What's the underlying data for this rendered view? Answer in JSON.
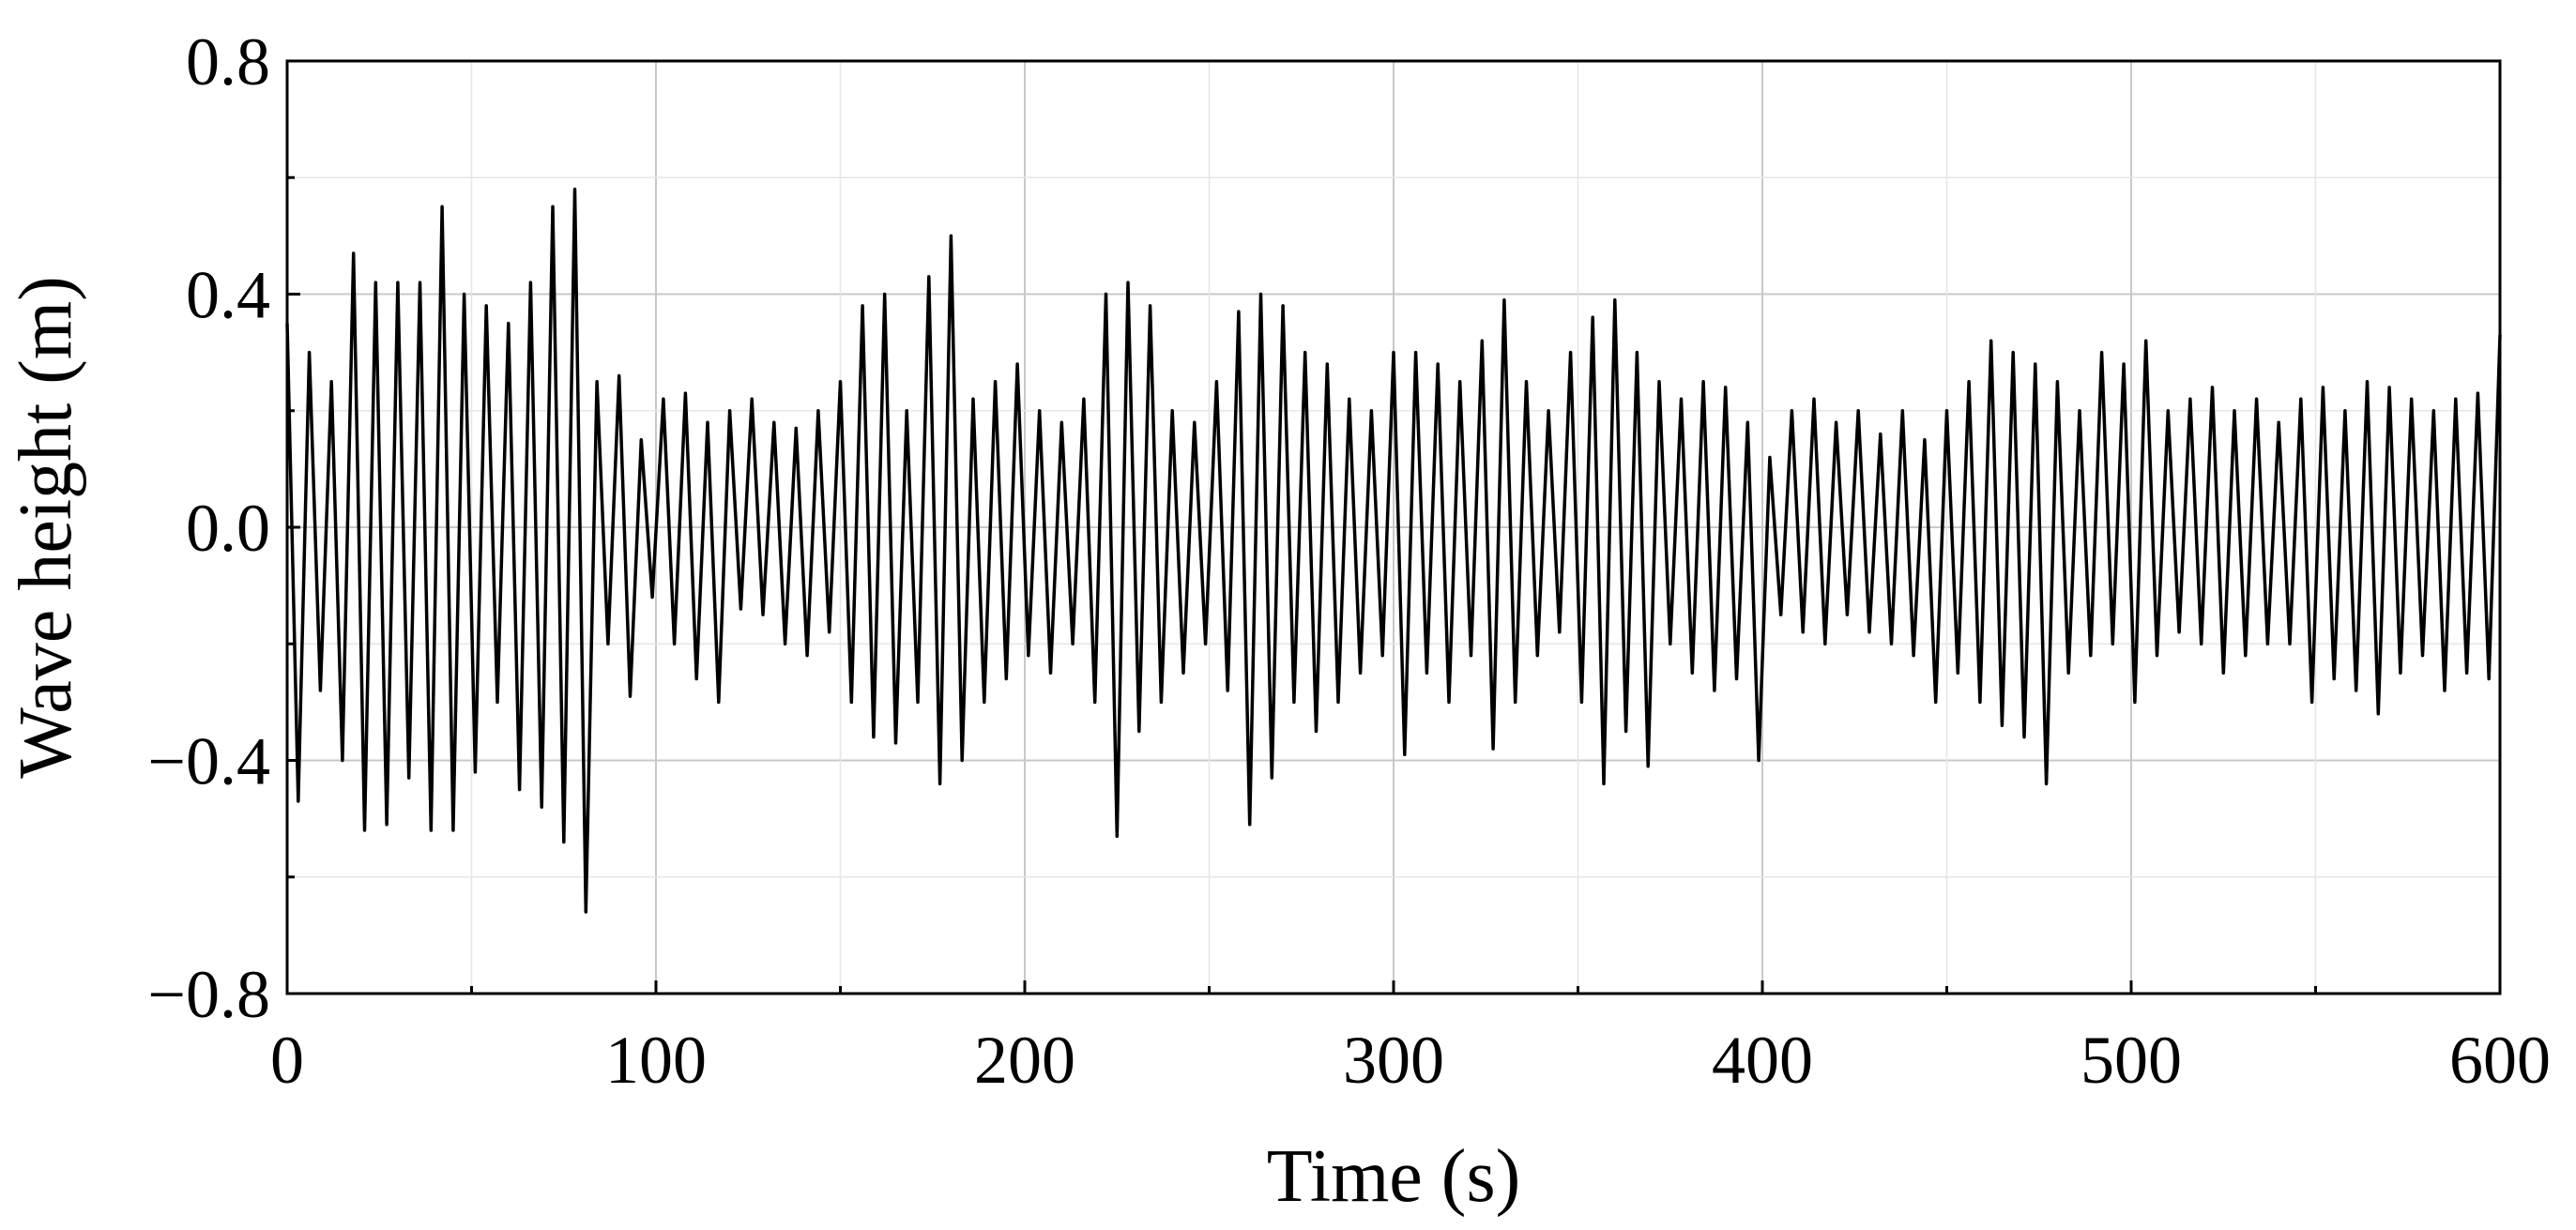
{
  "chart_data": {
    "type": "line",
    "xlabel": "Time (s)",
    "ylabel": "Wave height (m)",
    "xlim": [
      0,
      600
    ],
    "ylim": [
      -0.8,
      0.8
    ],
    "xticks": [
      0,
      100,
      200,
      300,
      400,
      500,
      600
    ],
    "yticks": [
      {
        "value": -0.8,
        "label": "−0.8"
      },
      {
        "value": -0.4,
        "label": "−0.4"
      },
      {
        "value": 0,
        "label": "0.0"
      },
      0.4,
      0.8
    ],
    "xminor_ticks": [
      50,
      150,
      250,
      350,
      450,
      550
    ],
    "yminor_ticks": [
      -0.6,
      -0.2,
      0.2,
      0.6
    ],
    "grid": true,
    "color": "#000000",
    "x": [
      0,
      3,
      6,
      9,
      12,
      15,
      18,
      21,
      24,
      27,
      30,
      33,
      36,
      39,
      42,
      45,
      48,
      51,
      54,
      57,
      60,
      63,
      66,
      69,
      72,
      75,
      78,
      81,
      84,
      87,
      90,
      93,
      96,
      99,
      102,
      105,
      108,
      111,
      114,
      117,
      120,
      123,
      126,
      129,
      132,
      135,
      138,
      141,
      144,
      147,
      150,
      153,
      156,
      159,
      162,
      165,
      168,
      171,
      174,
      177,
      180,
      183,
      186,
      189,
      192,
      195,
      198,
      201,
      204,
      207,
      210,
      213,
      216,
      219,
      222,
      225,
      228,
      231,
      234,
      237,
      240,
      243,
      246,
      249,
      252,
      255,
      258,
      261,
      264,
      267,
      270,
      273,
      276,
      279,
      282,
      285,
      288,
      291,
      294,
      297,
      300,
      303,
      306,
      309,
      312,
      315,
      318,
      321,
      324,
      327,
      330,
      333,
      336,
      339,
      342,
      345,
      348,
      351,
      354,
      357,
      360,
      363,
      366,
      369,
      372,
      375,
      378,
      381,
      384,
      387,
      390,
      393,
      396,
      399,
      402,
      405,
      408,
      411,
      414,
      417,
      420,
      423,
      426,
      429,
      432,
      435,
      438,
      441,
      444,
      447,
      450,
      453,
      456,
      459,
      462,
      465,
      468,
      471,
      474,
      477,
      480,
      483,
      486,
      489,
      492,
      495,
      498,
      501,
      504,
      507,
      510,
      513,
      516,
      519,
      522,
      525,
      528,
      531,
      534,
      537,
      540,
      543,
      546,
      549,
      552,
      555,
      558,
      561,
      564,
      567,
      570,
      573,
      576,
      579,
      582,
      585,
      588,
      591,
      594,
      597,
      600
    ],
    "values": [
      0.35,
      -0.47,
      0.3,
      -0.28,
      0.25,
      -0.4,
      0.47,
      -0.52,
      0.42,
      -0.51,
      0.42,
      -0.43,
      0.42,
      -0.52,
      0.55,
      -0.52,
      0.4,
      -0.42,
      0.38,
      -0.3,
      0.35,
      -0.45,
      0.42,
      -0.48,
      0.55,
      -0.54,
      0.58,
      -0.66,
      0.25,
      -0.2,
      0.26,
      -0.29,
      0.15,
      -0.12,
      0.22,
      -0.2,
      0.23,
      -0.26,
      0.18,
      -0.3,
      0.2,
      -0.14,
      0.22,
      -0.15,
      0.18,
      -0.2,
      0.17,
      -0.22,
      0.2,
      -0.18,
      0.25,
      -0.3,
      0.38,
      -0.36,
      0.4,
      -0.37,
      0.2,
      -0.3,
      0.43,
      -0.44,
      0.5,
      -0.4,
      0.22,
      -0.3,
      0.25,
      -0.26,
      0.28,
      -0.22,
      0.2,
      -0.25,
      0.18,
      -0.2,
      0.22,
      -0.3,
      0.4,
      -0.53,
      0.42,
      -0.35,
      0.38,
      -0.3,
      0.2,
      -0.25,
      0.18,
      -0.2,
      0.25,
      -0.28,
      0.37,
      -0.51,
      0.4,
      -0.43,
      0.38,
      -0.3,
      0.3,
      -0.35,
      0.28,
      -0.3,
      0.22,
      -0.25,
      0.2,
      -0.22,
      0.3,
      -0.39,
      0.3,
      -0.25,
      0.28,
      -0.3,
      0.25,
      -0.22,
      0.32,
      -0.38,
      0.39,
      -0.3,
      0.25,
      -0.22,
      0.2,
      -0.18,
      0.3,
      -0.3,
      0.36,
      -0.44,
      0.39,
      -0.35,
      0.3,
      -0.41,
      0.25,
      -0.2,
      0.22,
      -0.25,
      0.25,
      -0.28,
      0.24,
      -0.26,
      0.18,
      -0.4,
      0.12,
      -0.15,
      0.2,
      -0.18,
      0.22,
      -0.2,
      0.18,
      -0.15,
      0.2,
      -0.18,
      0.16,
      -0.2,
      0.2,
      -0.22,
      0.15,
      -0.3,
      0.2,
      -0.25,
      0.25,
      -0.3,
      0.32,
      -0.34,
      0.3,
      -0.36,
      0.28,
      -0.44,
      0.25,
      -0.25,
      0.2,
      -0.22,
      0.3,
      -0.2,
      0.28,
      -0.3,
      0.32,
      -0.22,
      0.2,
      -0.18,
      0.22,
      -0.2,
      0.24,
      -0.25,
      0.2,
      -0.22,
      0.22,
      -0.2,
      0.18,
      -0.2,
      0.22,
      -0.3,
      0.24,
      -0.26,
      0.2,
      -0.28,
      0.25,
      -0.32,
      0.24,
      -0.25,
      0.22,
      -0.22,
      0.2,
      -0.28,
      0.22,
      -0.25,
      0.23,
      -0.26,
      0.33
    ]
  }
}
